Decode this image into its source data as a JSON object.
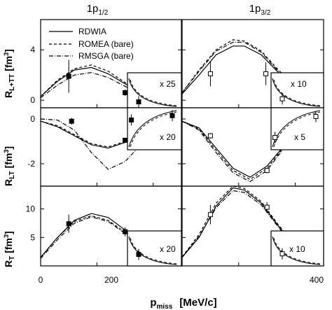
{
  "chart_data": [
    {
      "type": "line",
      "panel": "1p1/2 R_L+TT",
      "ylabel": "R_L+TT [fm^3]",
      "y_ticks": [
        0,
        4
      ],
      "ylim": [
        -0.6,
        6.4
      ],
      "xlim": [
        0,
        250
      ],
      "series": [
        {
          "name": "RDWIA",
          "x": [
            0,
            30,
            60,
            90,
            120,
            150,
            180,
            210,
            250
          ],
          "y": [
            0.3,
            1.5,
            2.4,
            2.6,
            2.1,
            1.3,
            0.6,
            0.25,
            0.05
          ]
        },
        {
          "name": "ROMEA (bare)",
          "x": [
            0,
            30,
            60,
            90,
            120,
            150,
            180,
            210,
            250
          ],
          "y": [
            0.3,
            1.6,
            2.5,
            2.8,
            2.3,
            1.4,
            0.7,
            0.25,
            0.05
          ]
        },
        {
          "name": "RMSGA (bare)",
          "x": [
            0,
            30,
            60,
            90,
            120,
            150,
            180,
            210,
            250
          ],
          "y": [
            0.2,
            1.2,
            2.0,
            2.2,
            1.8,
            1.1,
            0.5,
            0.2,
            0.05
          ]
        }
      ],
      "points": [
        {
          "x": 50,
          "y": 1.9,
          "err": 1.3,
          "filled": true
        },
        {
          "x": 150,
          "y": 0.6,
          "err": 0.25,
          "filled": true
        }
      ],
      "inset": {
        "label": "x 25",
        "points": [
          {
            "x": 272,
            "y": 0.15,
            "err": 0.7,
            "filled": true
          }
        ]
      }
    },
    {
      "type": "line",
      "panel": "1p3/2 R_L+TT",
      "y_ticks": [
        0,
        4
      ],
      "ylim": [
        -0.6,
        6.4
      ],
      "xlim": [
        0,
        250
      ],
      "series": [
        {
          "name": "RDWIA",
          "x": [
            0,
            30,
            60,
            90,
            110,
            140,
            170,
            200,
            230,
            250
          ],
          "y": [
            0.5,
            2.0,
            3.6,
            4.3,
            4.3,
            3.6,
            2.2,
            1.0,
            0.3,
            0.1
          ]
        },
        {
          "name": "ROMEA (bare)",
          "x": [
            0,
            30,
            60,
            90,
            110,
            140,
            170,
            200,
            230,
            250
          ],
          "y": [
            0.6,
            2.4,
            4.0,
            4.8,
            4.7,
            3.9,
            2.4,
            1.1,
            0.35,
            0.1
          ]
        },
        {
          "name": "RMSGA (bare)",
          "x": [
            0,
            30,
            60,
            90,
            110,
            140,
            170,
            200,
            230,
            250
          ],
          "y": [
            0.6,
            2.3,
            3.9,
            4.6,
            4.6,
            3.8,
            2.3,
            1.0,
            0.3,
            0.1
          ]
        }
      ],
      "points": [
        {
          "x": 50,
          "y": 2.1,
          "err": 1.0,
          "filled": false
        },
        {
          "x": 148,
          "y": 2.1,
          "err": 0.9,
          "filled": false
        }
      ],
      "inset": {
        "label": "x 10",
        "points": [
          {
            "x": 272,
            "y": 1.6,
            "err": 0.9,
            "filled": false
          }
        ]
      }
    },
    {
      "type": "line",
      "panel": "1p1/2 R_LT",
      "ylabel": "R_LT [fm^3]",
      "y_ticks": [
        0,
        -2
      ],
      "ylim": [
        -3.0,
        0.5
      ],
      "xlim": [
        0,
        250
      ],
      "series": [
        {
          "name": "RDWIA",
          "x": [
            0,
            30,
            60,
            90,
            120,
            150,
            180,
            210,
            250
          ],
          "y": [
            -0.1,
            -0.35,
            -0.75,
            -1.15,
            -1.3,
            -1.05,
            -0.55,
            -0.2,
            -0.05
          ]
        },
        {
          "name": "ROMEA (bare)",
          "x": [
            0,
            30,
            60,
            90,
            120,
            150,
            180,
            210,
            250
          ],
          "y": [
            -0.1,
            -0.3,
            -0.7,
            -1.1,
            -1.25,
            -1.0,
            -0.55,
            -0.2,
            -0.05
          ]
        },
        {
          "name": "RMSGA (bare)",
          "x": [
            0,
            30,
            60,
            90,
            120,
            150,
            180,
            210,
            250
          ],
          "y": [
            0.0,
            -0.05,
            -0.5,
            -1.5,
            -2.25,
            -1.9,
            -1.1,
            -0.4,
            -0.1
          ]
        }
      ],
      "points": [
        {
          "x": 55,
          "y": -0.1,
          "err": 0.15,
          "filled": true
        },
        {
          "x": 150,
          "y": -0.95,
          "err": 0.1,
          "filled": true
        }
      ],
      "inset": {
        "label": "x 20",
        "points": [
          {
            "x": 272,
            "y": -0.3,
            "err": 0.1,
            "filled": true
          },
          {
            "x": 345,
            "y": -0.05,
            "err": 0.05,
            "filled": true
          }
        ]
      }
    },
    {
      "type": "line",
      "panel": "1p3/2 R_LT",
      "y_ticks": [
        0,
        -2
      ],
      "ylim": [
        -3.0,
        0.5
      ],
      "xlim": [
        0,
        250
      ],
      "series": [
        {
          "name": "RDWIA",
          "x": [
            0,
            30,
            60,
            90,
            120,
            150,
            180,
            210,
            250
          ],
          "y": [
            -0.1,
            -0.4,
            -1.3,
            -2.2,
            -2.6,
            -2.1,
            -1.2,
            -0.5,
            -0.1
          ]
        },
        {
          "name": "ROMEA (bare)",
          "x": [
            0,
            30,
            60,
            90,
            120,
            150,
            180,
            210,
            250
          ],
          "y": [
            -0.1,
            -0.45,
            -1.4,
            -2.3,
            -2.7,
            -2.2,
            -1.25,
            -0.5,
            -0.1
          ]
        },
        {
          "name": "RMSGA (bare)",
          "x": [
            0,
            30,
            60,
            90,
            120,
            150,
            180,
            210,
            250
          ],
          "y": [
            -0.1,
            -0.5,
            -1.5,
            -2.4,
            -2.8,
            -2.3,
            -1.3,
            -0.55,
            -0.1
          ]
        }
      ],
      "points": [
        {
          "x": 50,
          "y": -0.75,
          "err": 0.12,
          "filled": false
        },
        {
          "x": 150,
          "y": -2.3,
          "err": 0.12,
          "filled": false
        }
      ],
      "inset": {
        "label": "x 5",
        "points": [
          {
            "x": 272,
            "y": -1.3,
            "err": 0.1,
            "filled": false
          },
          {
            "x": 345,
            "y": -0.1,
            "err": 0.1,
            "filled": false
          }
        ]
      }
    },
    {
      "type": "line",
      "panel": "1p1/2 R_T",
      "ylabel": "R_T [fm^3]",
      "y_ticks": [
        5,
        10
      ],
      "ylim": [
        0,
        14
      ],
      "xlim": [
        0,
        250
      ],
      "series": [
        {
          "name": "RDWIA",
          "x": [
            0,
            30,
            60,
            90,
            120,
            150,
            180,
            210,
            250
          ],
          "y": [
            1.5,
            5.0,
            8.0,
            9.2,
            8.5,
            6.3,
            3.6,
            1.8,
            0.6
          ]
        },
        {
          "name": "ROMEA (bare)",
          "x": [
            0,
            30,
            60,
            90,
            120,
            150,
            180,
            210,
            250
          ],
          "y": [
            1.5,
            5.0,
            7.8,
            8.8,
            8.0,
            5.9,
            3.4,
            1.7,
            0.6
          ]
        },
        {
          "name": "RMSGA (bare)",
          "x": [
            0,
            30,
            60,
            90,
            120,
            150,
            180,
            210,
            250
          ],
          "y": [
            1.3,
            4.6,
            7.5,
            8.6,
            7.8,
            5.7,
            3.3,
            1.6,
            0.5
          ]
        }
      ],
      "points": [
        {
          "x": 50,
          "y": 7.4,
          "err": 1.6,
          "filled": true
        },
        {
          "x": 150,
          "y": 6.0,
          "err": 0.8,
          "filled": true
        }
      ],
      "inset": {
        "label": "x 20",
        "points": [
          {
            "x": 272,
            "y": 2.8,
            "err": 1.5,
            "filled": true
          }
        ]
      }
    },
    {
      "type": "line",
      "panel": "1p3/2 R_T",
      "y_ticks": [
        5,
        10
      ],
      "ylim": [
        0,
        14
      ],
      "xlim": [
        0,
        250
      ],
      "series": [
        {
          "name": "RDWIA",
          "x": [
            0,
            30,
            60,
            90,
            110,
            140,
            170,
            200,
            230,
            250
          ],
          "y": [
            1.5,
            5.0,
            10.5,
            13.7,
            13.3,
            11.0,
            7.0,
            3.6,
            1.2,
            0.5
          ]
        },
        {
          "name": "ROMEA (bare)",
          "x": [
            0,
            30,
            60,
            90,
            110,
            140,
            170,
            200,
            230,
            250
          ],
          "y": [
            1.6,
            5.5,
            11.0,
            14.0,
            13.6,
            11.3,
            7.2,
            3.7,
            1.3,
            0.5
          ]
        },
        {
          "name": "RMSGA (bare)",
          "x": [
            0,
            30,
            60,
            90,
            110,
            140,
            170,
            200,
            230,
            250
          ],
          "y": [
            1.5,
            5.2,
            10.2,
            13.2,
            12.9,
            10.7,
            6.8,
            3.4,
            1.1,
            0.4
          ]
        }
      ],
      "points": [
        {
          "x": 50,
          "y": 9.0,
          "err": 1.7,
          "filled": false
        },
        {
          "x": 150,
          "y": 10.3,
          "err": 0.9,
          "filled": false
        }
      ],
      "inset": {
        "label": "x 10",
        "points": [
          {
            "x": 272,
            "y": 3.1,
            "err": 1.4,
            "filled": false
          }
        ]
      }
    }
  ],
  "labels": {
    "col_left": {
      "base": "1p",
      "sub": "1/2"
    },
    "col_right": {
      "base": "1p",
      "sub": "3/2"
    },
    "row1": {
      "base": "R",
      "sub": "L+TT",
      "unit": "[fm",
      "unit_sup": "3",
      "unit_end": "]"
    },
    "row2": {
      "base": "R",
      "sub": "LT",
      "unit": "[fm",
      "unit_sup": "3",
      "unit_end": "]"
    },
    "row3": {
      "base": "R",
      "sub": "T",
      "unit": "[fm",
      "unit_sup": "3",
      "unit_end": "]"
    },
    "xlabel": {
      "base": "p",
      "sub": "miss",
      "unit": "[MeV/c]"
    },
    "x_ticks": [
      "0",
      "200",
      "400"
    ],
    "legend": [
      "RDWIA",
      "ROMEA (bare)",
      "RMSGA (bare)"
    ]
  }
}
